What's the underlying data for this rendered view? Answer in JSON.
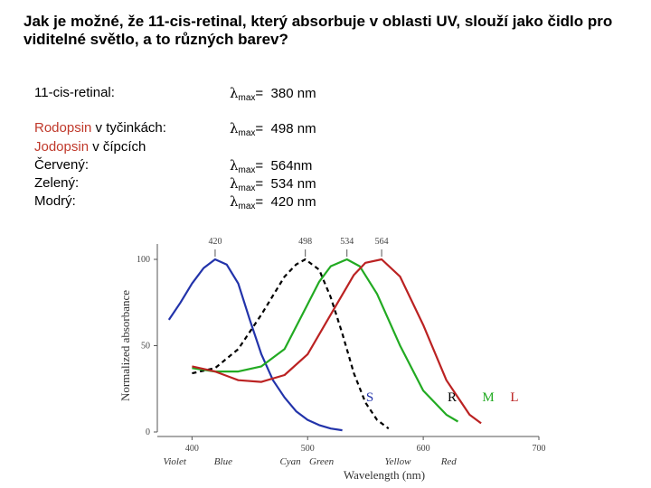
{
  "title": "Jak je možné, že 11-cis-retinal, který absorbuje v oblasti UV, slouží jako čidlo pro viditelné světlo, a to různých barev?",
  "rows": {
    "retinal_label": "11-cis-retinal:",
    "rodopsin_word": "Rodopsin",
    "rodopsin_rest": " v tyčinkách:",
    "jodopsin_word": "Jodopsin",
    "jodopsin_rest": " v čípcích",
    "cerveny": "Červený:",
    "zeleny": "Zelený:",
    "modry": "Modrý:"
  },
  "lambda": {
    "symbol": "λ",
    "sub": "max",
    "eq": "="
  },
  "values": {
    "retinal": "380 nm",
    "rodopsin": "498 nm",
    "cerveny": "564nm",
    "zeleny": "534 nm",
    "modry": "420 nm"
  },
  "chart_data": {
    "type": "line",
    "xlabel": "Wavelength (nm)",
    "ylabel": "Normalized absorbance",
    "xlim": [
      370,
      700
    ],
    "ylim": [
      0,
      100
    ],
    "x_ticks": [
      "400",
      "500",
      "600",
      "700"
    ],
    "y_ticks": [
      "0",
      "50",
      "100"
    ],
    "peak_labels": [
      "420",
      "498",
      "534",
      "564"
    ],
    "color_names": [
      "Violet",
      "Blue",
      "Cyan",
      "Green",
      "Yellow",
      "Red"
    ],
    "series": [
      {
        "name": "S",
        "color": "#2233aa",
        "style": "solid",
        "x": [
          380,
          390,
          400,
          410,
          420,
          430,
          440,
          450,
          460,
          470,
          480,
          490,
          500,
          510,
          520,
          530
        ],
        "y": [
          65,
          75,
          86,
          95,
          100,
          97,
          86,
          65,
          45,
          30,
          20,
          12,
          7,
          4,
          2,
          1
        ]
      },
      {
        "name": "R",
        "color": "#000000",
        "style": "dashed",
        "x": [
          400,
          420,
          440,
          460,
          480,
          490,
          498,
          510,
          520,
          530,
          540,
          550,
          560,
          570
        ],
        "y": [
          34,
          37,
          48,
          68,
          90,
          97,
          100,
          94,
          78,
          57,
          34,
          17,
          7,
          2
        ]
      },
      {
        "name": "M",
        "color": "#22aa22",
        "style": "solid",
        "x": [
          400,
          420,
          440,
          460,
          480,
          500,
          510,
          520,
          534,
          545,
          560,
          580,
          600,
          620,
          630
        ],
        "y": [
          37,
          35,
          35,
          38,
          48,
          74,
          87,
          96,
          100,
          96,
          80,
          50,
          24,
          10,
          6
        ]
      },
      {
        "name": "L",
        "color": "#bb2222",
        "style": "solid",
        "x": [
          400,
          420,
          440,
          460,
          480,
          500,
          520,
          540,
          550,
          564,
          580,
          600,
          620,
          640,
          650
        ],
        "y": [
          38,
          35,
          30,
          29,
          33,
          45,
          68,
          91,
          98,
          100,
          90,
          62,
          30,
          10,
          5
        ]
      }
    ]
  }
}
